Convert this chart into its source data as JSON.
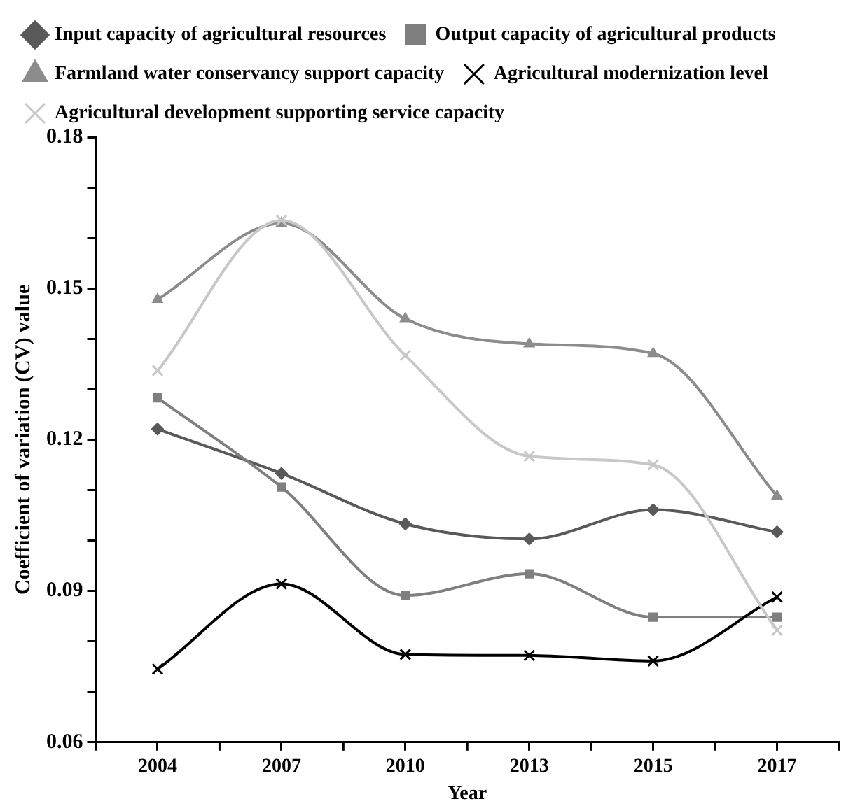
{
  "chart_data": {
    "type": "line",
    "xlabel": "Year",
    "ylabel": "Coefficient of variation (CV) value",
    "categories": [
      "2004",
      "2007",
      "2010",
      "2013",
      "2015",
      "2017"
    ],
    "series": [
      {
        "name": "Input capacity of agricultural resources",
        "color": "#595959",
        "marker": "diamond",
        "values": [
          0.1221,
          0.1133,
          0.1033,
          0.1003,
          0.1061,
          0.1017
        ]
      },
      {
        "name": "Output capacity of agricultural products",
        "color": "#7f7f7f",
        "marker": "square",
        "values": [
          0.1283,
          0.1106,
          0.0891,
          0.0934,
          0.0848,
          0.0848
        ]
      },
      {
        "name": "Farmland water conservancy support capacity",
        "color": "#8c8c8c",
        "marker": "triangle",
        "values": [
          0.1478,
          0.1629,
          0.144,
          0.139,
          0.1371,
          0.1088
        ]
      },
      {
        "name": "Agricultural modernization level",
        "color": "#000000",
        "marker": "cross",
        "values": [
          0.0745,
          0.0914,
          0.0774,
          0.0772,
          0.0761,
          0.0888
        ]
      },
      {
        "name": "Agricultural development supporting service capacity",
        "color": "#c8c8c8",
        "marker": "cross",
        "values": [
          0.1337,
          0.1635,
          0.1367,
          0.1167,
          0.115,
          0.0822
        ]
      }
    ],
    "ylim": [
      0.06,
      0.18
    ],
    "yticks": [
      0.06,
      {
        "value": 0.07,
        "label": null
      },
      {
        "value": 0.08,
        "label": null
      },
      0.09,
      {
        "value": 0.1,
        "label": null
      },
      {
        "value": 0.11,
        "label": null
      },
      0.12,
      {
        "value": 0.13,
        "label": null
      },
      {
        "value": 0.14,
        "label": null
      },
      0.15,
      {
        "value": 0.16,
        "label": null
      },
      {
        "value": 0.17,
        "label": null
      },
      0.18
    ],
    "grid": false,
    "legend": "top",
    "line_style": "solid"
  }
}
